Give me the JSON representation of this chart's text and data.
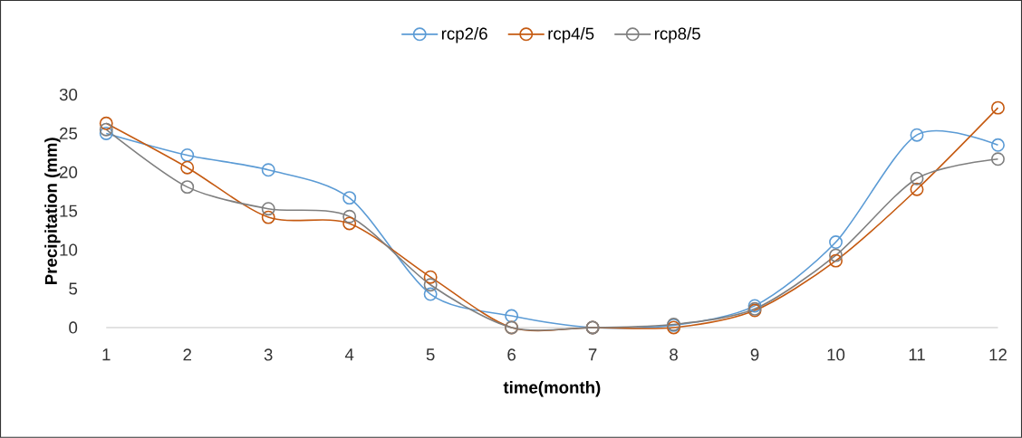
{
  "chart_data": {
    "type": "line",
    "xlabel": "time(month)",
    "ylabel": "Precipitation (mm)",
    "categories": [
      "1",
      "2",
      "3",
      "4",
      "5",
      "6",
      "7",
      "8",
      "9",
      "10",
      "11",
      "12"
    ],
    "series": [
      {
        "name": "rcp2/6",
        "color": "#5b9bd5",
        "values": [
          25,
          22.2,
          20.3,
          16.7,
          4.3,
          1.5,
          0,
          0.3,
          2.8,
          11,
          24.8,
          23.5
        ]
      },
      {
        "name": "rcp4/5",
        "color": "#c55a11",
        "values": [
          26.3,
          20.6,
          14.2,
          13.4,
          6.5,
          0,
          0,
          0,
          2.2,
          8.6,
          17.8,
          28.3
        ]
      },
      {
        "name": "rcp8/5",
        "color": "#7f7f7f",
        "values": [
          25.5,
          18.1,
          15.3,
          14.3,
          5.5,
          0,
          0,
          0.4,
          2.4,
          9.3,
          19.2,
          21.7
        ]
      }
    ],
    "ylim": [
      0,
      30
    ],
    "yticks": [
      0,
      5,
      10,
      15,
      20,
      25,
      30
    ],
    "legend": "top",
    "marker": "circle",
    "line_style": "solid"
  }
}
